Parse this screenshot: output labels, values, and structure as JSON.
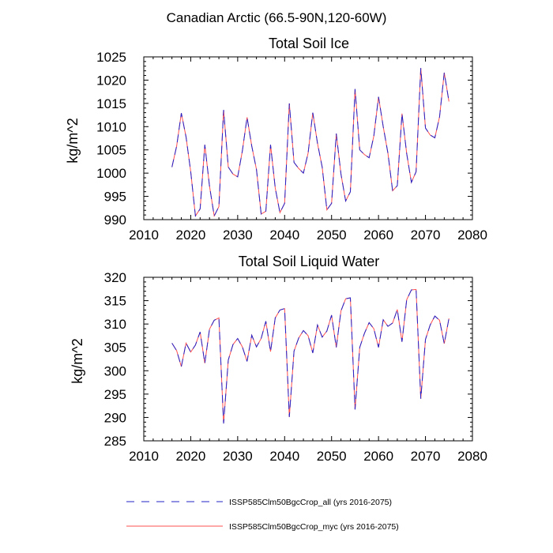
{
  "figure_title": "Canadian Arctic (66.5-90N,120-60W)",
  "legend": [
    {
      "label": "ISSP585Clm50BgcCrop_all (yrs 2016-2075)",
      "color": "#2323c8",
      "dash": "dashed"
    },
    {
      "label": "ISSP585Clm50BgcCrop_myc (yrs 2016-2075)",
      "color": "#ff5050",
      "dash": "solid"
    }
  ],
  "chart_data": [
    {
      "type": "line",
      "title": "Total Soil Ice",
      "xlabel": "",
      "ylabel": "kg/m^2",
      "xlim": [
        2010,
        2080
      ],
      "ylim": [
        990,
        1025
      ],
      "x_ticks": [
        2010,
        2020,
        2030,
        2040,
        2050,
        2060,
        2070,
        2080
      ],
      "y_ticks": [
        990,
        995,
        1000,
        1005,
        1010,
        1015,
        1020,
        1025
      ],
      "x": [
        2016,
        2017,
        2018,
        2019,
        2020,
        2021,
        2022,
        2023,
        2024,
        2025,
        2026,
        2027,
        2028,
        2029,
        2030,
        2031,
        2032,
        2033,
        2034,
        2035,
        2036,
        2037,
        2038,
        2039,
        2040,
        2041,
        2042,
        2043,
        2044,
        2045,
        2046,
        2047,
        2048,
        2049,
        2050,
        2051,
        2052,
        2053,
        2054,
        2055,
        2056,
        2057,
        2058,
        2059,
        2060,
        2061,
        2062,
        2063,
        2064,
        2065,
        2066,
        2067,
        2068,
        2069,
        2070,
        2071,
        2072,
        2073,
        2074,
        2075
      ],
      "series": [
        {
          "name": "ISSP585Clm50BgcCrop_all (yrs 2016-2075)",
          "values": [
            1001.3,
            1005.8,
            1012.9,
            1007.8,
            1000.3,
            990.8,
            992.3,
            1006.1,
            997.2,
            990.8,
            992.8,
            1013.6,
            1001.3,
            999.8,
            999.2,
            1004.8,
            1012.0,
            1005.8,
            1000.8,
            991.2,
            991.8,
            1006.1,
            996.8,
            991.5,
            993.5,
            1015.0,
            1002.3,
            1001.0,
            1000.0,
            1004.3,
            1013.0,
            1006.4,
            1001.3,
            992.1,
            993.5,
            1008.5,
            999.8,
            994.0,
            996.0,
            1018.1,
            1005.0,
            1004.0,
            1003.3,
            1008.0,
            1016.4,
            1010.0,
            1004.3,
            996.2,
            997.3,
            1012.8,
            1004.2,
            998.0,
            1000.3,
            1022.6,
            1009.7,
            1008.2,
            1007.6,
            1012.1,
            1021.6,
            1015.4
          ]
        },
        {
          "name": "ISSP585Clm50BgcCrop_myc (yrs 2016-2075)",
          "values": [
            1001.3,
            1005.8,
            1012.9,
            1007.8,
            1000.3,
            990.8,
            992.3,
            1006.1,
            997.2,
            990.8,
            992.8,
            1013.6,
            1001.3,
            999.8,
            999.2,
            1004.8,
            1012.0,
            1005.8,
            1000.8,
            991.2,
            991.8,
            1006.1,
            996.8,
            991.5,
            993.5,
            1015.0,
            1002.3,
            1001.0,
            1000.0,
            1004.3,
            1013.0,
            1006.4,
            1001.3,
            992.1,
            993.5,
            1008.5,
            999.8,
            994.0,
            996.0,
            1018.1,
            1005.0,
            1004.0,
            1003.3,
            1008.0,
            1016.4,
            1010.0,
            1004.3,
            996.2,
            997.3,
            1012.8,
            1004.2,
            998.0,
            1000.3,
            1022.6,
            1009.7,
            1008.2,
            1007.6,
            1012.1,
            1021.6,
            1015.4
          ]
        }
      ]
    },
    {
      "type": "line",
      "title": "Total Soil Liquid Water",
      "xlabel": "",
      "ylabel": "kg/m^2",
      "xlim": [
        2010,
        2080
      ],
      "ylim": [
        285,
        320
      ],
      "x_ticks": [
        2010,
        2020,
        2030,
        2040,
        2050,
        2060,
        2070,
        2080
      ],
      "y_ticks": [
        285,
        290,
        295,
        300,
        305,
        310,
        315,
        320
      ],
      "x": [
        2016,
        2017,
        2018,
        2019,
        2020,
        2021,
        2022,
        2023,
        2024,
        2025,
        2026,
        2027,
        2028,
        2029,
        2030,
        2031,
        2032,
        2033,
        2034,
        2035,
        2036,
        2037,
        2038,
        2039,
        2040,
        2041,
        2042,
        2043,
        2044,
        2045,
        2046,
        2047,
        2048,
        2049,
        2050,
        2051,
        2052,
        2053,
        2054,
        2055,
        2056,
        2057,
        2058,
        2059,
        2060,
        2061,
        2062,
        2063,
        2064,
        2065,
        2066,
        2067,
        2068,
        2069,
        2070,
        2071,
        2072,
        2073,
        2074,
        2075
      ],
      "series": [
        {
          "name": "ISSP585Clm50BgcCrop_all (yrs 2016-2075)",
          "values": [
            305.9,
            304.3,
            300.9,
            305.9,
            304.0,
            305.5,
            308.3,
            301.6,
            308.9,
            310.8,
            311.3,
            288.7,
            302.3,
            305.6,
            306.9,
            305.1,
            302.0,
            307.6,
            305.1,
            306.9,
            310.6,
            304.1,
            311.3,
            313.0,
            313.3,
            290.1,
            304.2,
            307.0,
            308.6,
            307.5,
            303.8,
            309.8,
            307.2,
            308.5,
            311.9,
            305.0,
            312.8,
            315.4,
            315.6,
            291.7,
            305.0,
            308.0,
            310.3,
            309.0,
            305.0,
            310.9,
            309.5,
            310.2,
            313.1,
            306.2,
            315.2,
            317.3,
            317.4,
            294.0,
            306.7,
            309.8,
            311.7,
            310.8,
            305.8,
            311.2
          ]
        },
        {
          "name": "ISSP585Clm50BgcCrop_myc (yrs 2016-2075)",
          "values": [
            305.9,
            304.3,
            300.9,
            305.9,
            304.0,
            305.5,
            308.3,
            301.6,
            308.9,
            310.8,
            311.3,
            288.7,
            302.3,
            305.6,
            306.9,
            305.1,
            302.0,
            307.6,
            305.1,
            306.9,
            310.6,
            304.1,
            311.3,
            313.0,
            313.3,
            290.1,
            304.2,
            307.0,
            308.6,
            307.5,
            303.8,
            309.8,
            307.2,
            308.5,
            311.9,
            305.0,
            312.8,
            315.4,
            315.6,
            291.7,
            305.0,
            308.0,
            310.3,
            309.0,
            305.0,
            310.9,
            309.5,
            310.2,
            313.1,
            306.2,
            315.2,
            317.3,
            317.4,
            294.0,
            306.7,
            309.8,
            311.7,
            310.8,
            305.8,
            311.2
          ]
        }
      ]
    }
  ]
}
